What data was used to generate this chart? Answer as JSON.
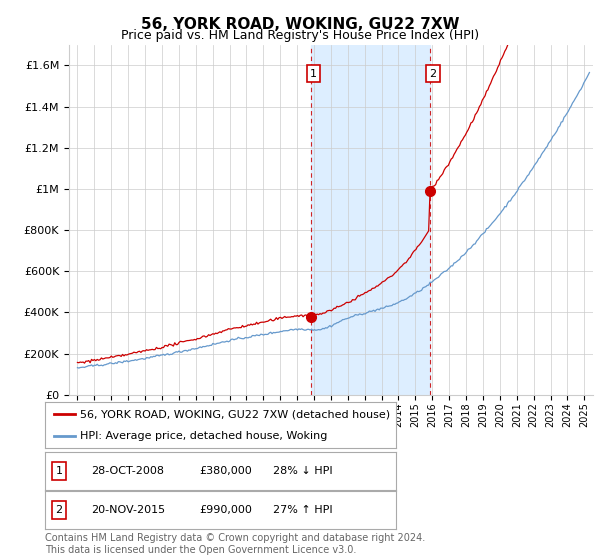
{
  "title": "56, YORK ROAD, WOKING, GU22 7XW",
  "subtitle": "Price paid vs. HM Land Registry's House Price Index (HPI)",
  "ylabel_ticks": [
    "£0",
    "£200K",
    "£400K",
    "£600K",
    "£800K",
    "£1M",
    "£1.2M",
    "£1.4M",
    "£1.6M"
  ],
  "ytick_values": [
    0,
    200000,
    400000,
    600000,
    800000,
    1000000,
    1200000,
    1400000,
    1600000
  ],
  "ylim": [
    0,
    1700000
  ],
  "xlim_start": 1994.5,
  "xlim_end": 2025.5,
  "shade_start1": 2008.83,
  "shade_end1": 2015.89,
  "vline1_x": 2008.83,
  "vline2_x": 2015.89,
  "sale1_x": 2008.83,
  "sale1_y": 380000,
  "sale2_x": 2015.89,
  "sale2_y": 990000,
  "legend_line1_label": "56, YORK ROAD, WOKING, GU22 7XW (detached house)",
  "legend_line2_label": "HPI: Average price, detached house, Woking",
  "table_row1": [
    "1",
    "28-OCT-2008",
    "£380,000",
    "28% ↓ HPI"
  ],
  "table_row2": [
    "2",
    "20-NOV-2015",
    "£990,000",
    "27% ↑ HPI"
  ],
  "footer": "Contains HM Land Registry data © Crown copyright and database right 2024.\nThis data is licensed under the Open Government Licence v3.0.",
  "red_color": "#cc0000",
  "blue_color": "#6699cc",
  "shade_color": "#ddeeff",
  "background_color": "#ffffff",
  "grid_color": "#cccccc",
  "title_fontsize": 11,
  "subtitle_fontsize": 9,
  "tick_fontsize": 8,
  "legend_fontsize": 8,
  "table_fontsize": 8,
  "footer_fontsize": 7
}
